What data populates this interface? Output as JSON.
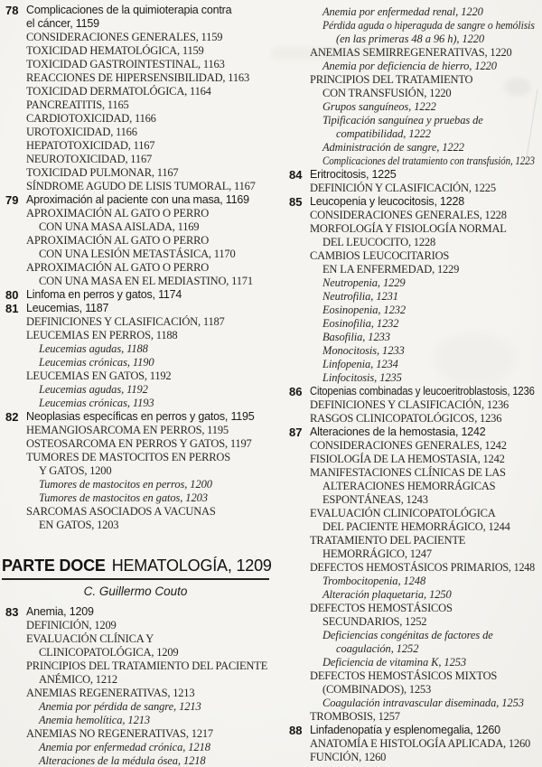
{
  "page": {
    "background": "#f3f2ee",
    "ink": "#24221e",
    "rule_color": "#24231f"
  },
  "part_heading": {
    "label": "PARTE DOCE",
    "title": "HEMATOLOGÍA, 1209",
    "author": "C. Guillermo Couto"
  },
  "columns": {
    "left": [
      {
        "t": "ch",
        "n": "78",
        "lines": [
          "Complicaciones de la quimioterapia contra",
          "el cáncer, 1159"
        ]
      },
      {
        "t": "s1",
        "lines": [
          "CONSIDERACIONES GENERALES, 1159"
        ]
      },
      {
        "t": "s1",
        "lines": [
          "TOXICIDAD HEMATOLÓGICA, 1159"
        ]
      },
      {
        "t": "s1",
        "lines": [
          "TOXICIDAD GASTROINTESTINAL, 1163"
        ]
      },
      {
        "t": "s1",
        "lines": [
          "REACCIONES DE HIPERSENSIBILIDAD, 1163"
        ]
      },
      {
        "t": "s1",
        "lines": [
          "TOXICIDAD DERMATOLÓGICA, 1164"
        ]
      },
      {
        "t": "s1",
        "lines": [
          "PANCREATITIS, 1165"
        ]
      },
      {
        "t": "s1",
        "lines": [
          "CARDIOTOXICIDAD, 1166"
        ]
      },
      {
        "t": "s1",
        "lines": [
          "UROTOXICIDAD, 1166"
        ]
      },
      {
        "t": "s1",
        "lines": [
          "HEPATOTOXICIDAD, 1167"
        ]
      },
      {
        "t": "s1",
        "lines": [
          "NEUROTOXICIDAD, 1167"
        ]
      },
      {
        "t": "s1",
        "lines": [
          "TOXICIDAD PULMONAR, 1167"
        ]
      },
      {
        "t": "s1",
        "lines": [
          "SÍNDROME AGUDO DE LISIS TUMORAL, 1167"
        ]
      },
      {
        "t": "ch",
        "n": "79",
        "lines": [
          "Aproximación al paciente con una masa, 1169"
        ]
      },
      {
        "t": "s1",
        "lines": [
          "APROXIMACIÓN AL GATO O PERRO",
          "CON UNA MASA AISLADA, 1169"
        ]
      },
      {
        "t": "s1",
        "lines": [
          "APROXIMACIÓN AL GATO O PERRO",
          "CON UNA LESIÓN METASTÁSICA, 1170"
        ]
      },
      {
        "t": "s1",
        "lines": [
          "APROXIMACIÓN AL GATO O PERRO",
          "CON UNA MASA EN EL MEDIASTINO, 1171"
        ]
      },
      {
        "t": "ch",
        "n": "80",
        "lines": [
          "Linfoma en perros y gatos, 1174"
        ]
      },
      {
        "t": "ch",
        "n": "81",
        "lines": [
          "Leucemias, 1187"
        ]
      },
      {
        "t": "s1",
        "lines": [
          "DEFINICIONES Y CLASIFICACIÓN, 1187"
        ]
      },
      {
        "t": "s1",
        "lines": [
          "LEUCEMIAS EN PERROS, 1188"
        ]
      },
      {
        "t": "s2",
        "lines": [
          "Leucemias agudas, 1188"
        ]
      },
      {
        "t": "s2",
        "lines": [
          "Leucemias crónicas, 1190"
        ]
      },
      {
        "t": "s1",
        "lines": [
          "LEUCEMIAS EN GATOS, 1192"
        ]
      },
      {
        "t": "s2",
        "lines": [
          "Leucemias agudas, 1192"
        ]
      },
      {
        "t": "s2",
        "lines": [
          "Leucemias crónicas, 1193"
        ]
      },
      {
        "t": "ch",
        "n": "82",
        "lines": [
          "Neoplasias específicas en perros y gatos, 1195"
        ]
      },
      {
        "t": "s1",
        "lines": [
          "HEMANGIOSARCOMA EN PERROS, 1195"
        ]
      },
      {
        "t": "s1",
        "lines": [
          "OSTEOSARCOMA EN PERROS Y GATOS, 1197"
        ]
      },
      {
        "t": "s1",
        "lines": [
          "TUMORES DE MASTOCITOS EN PERROS",
          "Y GATOS, 1200"
        ]
      },
      {
        "t": "s2",
        "lines": [
          "Tumores de mastocitos en perros, 1200"
        ]
      },
      {
        "t": "s2",
        "lines": [
          "Tumores de mastocitos en gatos, 1203"
        ]
      },
      {
        "t": "s1",
        "lines": [
          "SARCOMAS ASOCIADOS A VACUNAS",
          "EN GATOS, 1203"
        ]
      },
      {
        "t": "part"
      },
      {
        "t": "ch",
        "n": "83",
        "lines": [
          "Anemia, 1209"
        ]
      },
      {
        "t": "s1",
        "lines": [
          "DEFINICIÓN, 1209"
        ]
      },
      {
        "t": "s1",
        "lines": [
          "EVALUACIÓN CLÍNICA Y",
          "CLINICOPATOLÓGICA, 1209"
        ]
      },
      {
        "t": "s1",
        "lines": [
          "PRINCIPIOS DEL TRATAMIENTO DEL PACIENTE",
          "ANÉMICO, 1212"
        ]
      },
      {
        "t": "s1",
        "lines": [
          "ANEMIAS REGENERATIVAS, 1213"
        ]
      },
      {
        "t": "s2",
        "lines": [
          "Anemia por pérdida de sangre, 1213"
        ]
      },
      {
        "t": "s2",
        "lines": [
          "Anemia hemolítica, 1213"
        ]
      },
      {
        "t": "s1",
        "lines": [
          "ANEMIAS NO REGENERATIVAS, 1217"
        ]
      },
      {
        "t": "s2",
        "lines": [
          "Anemia por enfermedad crónica, 1218"
        ]
      },
      {
        "t": "s2",
        "lines": [
          "Alteraciones de la médula ósea, 1218"
        ]
      }
    ],
    "right": [
      {
        "t": "s2",
        "lines": [
          "Anemia por enfermedad renal, 1220"
        ]
      },
      {
        "t": "s2",
        "lines": [
          "Pérdida aguda o hiperaguda de sangre o hemólisis",
          "(en las primeras 48 a 96 h), 1220"
        ]
      },
      {
        "t": "s1",
        "lines": [
          "ANEMIAS SEMIRREGENERATIVAS, 1220"
        ]
      },
      {
        "t": "s2",
        "lines": [
          "Anemia por deficiencia de hierro, 1220"
        ]
      },
      {
        "t": "s1",
        "lines": [
          "PRINCIPIOS DEL TRATAMIENTO",
          "CON TRANSFUSIÓN, 1220"
        ]
      },
      {
        "t": "s2",
        "lines": [
          "Grupos sanguíneos, 1222"
        ]
      },
      {
        "t": "s2",
        "lines": [
          "Tipificación sanguínea y pruebas de",
          "compatibilidad, 1222"
        ]
      },
      {
        "t": "s2",
        "lines": [
          "Administración de sangre, 1222"
        ]
      },
      {
        "t": "s2",
        "lines": [
          "Complicaciones del tratamiento con transfusión, 1223"
        ]
      },
      {
        "t": "ch",
        "n": "84",
        "lines": [
          "Eritrocitosis, 1225"
        ]
      },
      {
        "t": "s1",
        "lines": [
          "DEFINICIÓN Y CLASIFICACIÓN, 1225"
        ]
      },
      {
        "t": "ch",
        "n": "85",
        "lines": [
          "Leucopenia y leucocitosis, 1228"
        ]
      },
      {
        "t": "s1",
        "lines": [
          "CONSIDERACIONES GENERALES, 1228"
        ]
      },
      {
        "t": "s1",
        "lines": [
          "MORFOLOGÍA Y FISIOLOGÍA NORMAL",
          "DEL LEUCOCITO, 1228"
        ]
      },
      {
        "t": "s1",
        "lines": [
          "CAMBIOS LEUCOCITARIOS",
          "EN LA ENFERMEDAD, 1229"
        ]
      },
      {
        "t": "s2",
        "lines": [
          "Neutropenia, 1229"
        ]
      },
      {
        "t": "s2",
        "lines": [
          "Neutrofilia, 1231"
        ]
      },
      {
        "t": "s2",
        "lines": [
          "Eosinopenia, 1232"
        ]
      },
      {
        "t": "s2",
        "lines": [
          "Eosinofilia, 1232"
        ]
      },
      {
        "t": "s2",
        "lines": [
          "Basofilia, 1233"
        ]
      },
      {
        "t": "s2",
        "lines": [
          "Monocitosis, 1233"
        ]
      },
      {
        "t": "s2",
        "lines": [
          "Linfopenia, 1234"
        ]
      },
      {
        "t": "s2",
        "lines": [
          "Linfocitosis, 1235"
        ]
      },
      {
        "t": "ch",
        "n": "86",
        "lines": [
          "Citopenias combinadas y leucoeritroblastosis, 1236"
        ]
      },
      {
        "t": "s1",
        "lines": [
          "DEFINICIONES Y CLASIFICACIÓN, 1236"
        ]
      },
      {
        "t": "s1",
        "lines": [
          "RASGOS CLINICOPATOLÓGICOS, 1236"
        ]
      },
      {
        "t": "ch",
        "n": "87",
        "lines": [
          "Alteraciones de la hemostasia, 1242"
        ]
      },
      {
        "t": "s1",
        "lines": [
          "CONSIDERACIONES GENERALES, 1242"
        ]
      },
      {
        "t": "s1",
        "lines": [
          "FISIOLOGÍA DE LA HEMOSTASIA, 1242"
        ]
      },
      {
        "t": "s1",
        "lines": [
          "MANIFESTACIONES CLÍNICAS DE LAS",
          "ALTERACIONES HEMORRÁGICAS",
          "ESPONTÁNEAS, 1243"
        ]
      },
      {
        "t": "s1",
        "lines": [
          "EVALUACIÓN CLINICOPATOLÓGICA",
          "DEL PACIENTE HEMORRÁGICO, 1244"
        ]
      },
      {
        "t": "s1",
        "lines": [
          "TRATAMIENTO DEL PACIENTE",
          "HEMORRÁGICO, 1247"
        ]
      },
      {
        "t": "s1",
        "lines": [
          "DEFECTOS HEMOSTÁSICOS PRIMARIOS, 1248"
        ]
      },
      {
        "t": "s2",
        "lines": [
          "Trombocitopenia, 1248"
        ]
      },
      {
        "t": "s2",
        "lines": [
          "Alteración plaquetaria, 1250"
        ]
      },
      {
        "t": "s1",
        "lines": [
          "DEFECTOS HEMOSTÁSICOS",
          "SECUNDARIOS, 1252"
        ]
      },
      {
        "t": "s2",
        "lines": [
          "Deficiencias congénitas de factores de",
          "coagulación, 1252"
        ]
      },
      {
        "t": "s2",
        "lines": [
          "Deficiencia de vitamina K, 1253"
        ]
      },
      {
        "t": "s1",
        "lines": [
          "DEFECTOS HEMOSTÁSICOS MIXTOS",
          "(COMBINADOS), 1253"
        ]
      },
      {
        "t": "s2",
        "lines": [
          "Coagulación intravascular diseminada, 1253"
        ]
      },
      {
        "t": "s1",
        "lines": [
          "TROMBOSIS, 1257"
        ]
      },
      {
        "t": "ch",
        "n": "88",
        "lines": [
          "Linfadenopatía y esplenomegalia, 1260"
        ]
      },
      {
        "t": "s1",
        "lines": [
          "ANATOMÍA E HISTOLOGÍA APLICADA, 1260"
        ]
      },
      {
        "t": "s1",
        "lines": [
          "FUNCIÓN, 1260"
        ]
      }
    ]
  }
}
